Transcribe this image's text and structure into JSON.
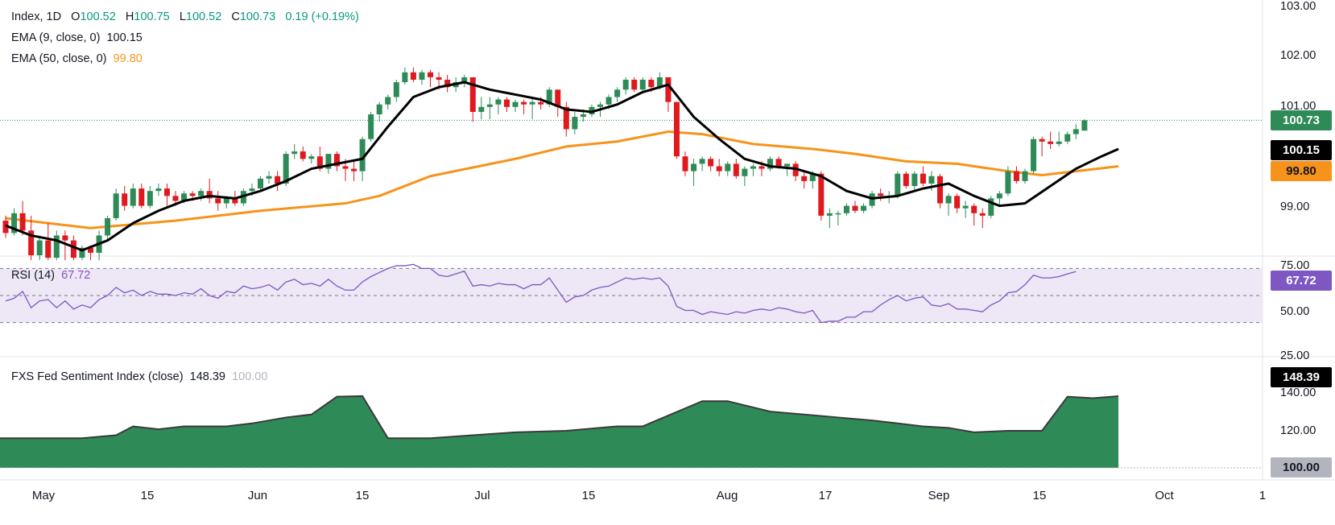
{
  "header": {
    "line1": {
      "symbol": "Index, 1D",
      "o_label": "O",
      "o": "100.52",
      "h_label": "H",
      "h": "100.75",
      "l_label": "L",
      "l": "100.52",
      "c_label": "C",
      "c": "100.73",
      "change": "0.19",
      "change_pct": "(+0.19%)"
    },
    "ema9": {
      "label": "EMA (9, close, 0)",
      "value": "100.15"
    },
    "ema50": {
      "label": "EMA (50, close, 0)",
      "value": "99.80"
    }
  },
  "rsi_pane": {
    "label": "RSI (14)",
    "value": "67.72"
  },
  "fed_pane": {
    "label": "FXS Fed Sentiment Index (close)",
    "value": "148.39",
    "baseline": "100.00"
  },
  "price_axis": {
    "ticks": [
      "103.00",
      "102.00",
      "101.00",
      "99.00"
    ]
  },
  "rsi_axis": {
    "ticks": [
      "75.00",
      "50.00",
      "25.00"
    ]
  },
  "fed_axis": {
    "ticks": [
      "140.00",
      "120.00",
      "100.00"
    ]
  },
  "x_axis": {
    "ticks": [
      "May",
      "15",
      "Jun",
      "15",
      "Jul",
      "15",
      "Aug",
      "17",
      "Sep",
      "15",
      "Oct",
      "1"
    ]
  },
  "price_labels": {
    "last": "100.73",
    "ema9": "100.15",
    "ema50": "99.80"
  },
  "rsi_labels": {
    "last": "67.72"
  },
  "fed_labels": {
    "last": "148.39",
    "baseline": "100.00"
  },
  "colors": {
    "up": "#26a69a",
    "up_fill": "#2e8b57",
    "down": "#e0191e",
    "ema9": "#000000",
    "ema50": "#f7931a",
    "rsi": "#7e57c2",
    "rsi_band": "#ede7f6",
    "fed_fill": "#2e8b57",
    "fed_line": "#3a3a3a"
  },
  "chart_data": [
    {
      "type": "candlestick",
      "title": "Index, 1D",
      "ylim": [
        97.9,
        103.0
      ],
      "candles_ohlc": [
        [
          98.7,
          98.8,
          98.35,
          98.45
        ],
        [
          98.45,
          98.95,
          98.4,
          98.85
        ],
        [
          98.85,
          99.1,
          98.4,
          98.5
        ],
        [
          98.5,
          98.8,
          97.9,
          98.0
        ],
        [
          98.0,
          98.4,
          97.9,
          98.3
        ],
        [
          98.3,
          98.65,
          97.9,
          97.95
        ],
        [
          97.95,
          98.5,
          97.9,
          98.4
        ],
        [
          98.4,
          98.5,
          97.9,
          98.3
        ],
        [
          98.3,
          98.4,
          97.9,
          97.95
        ],
        [
          97.95,
          98.2,
          97.9,
          98.15
        ],
        [
          98.15,
          98.2,
          97.9,
          98.05
        ],
        [
          98.05,
          98.5,
          97.9,
          98.4
        ],
        [
          98.4,
          98.8,
          98.3,
          98.75
        ],
        [
          98.75,
          99.35,
          98.7,
          99.25
        ],
        [
          99.25,
          99.4,
          98.9,
          99.0
        ],
        [
          99.0,
          99.45,
          98.95,
          99.35
        ],
        [
          99.35,
          99.45,
          98.95,
          99.0
        ],
        [
          99.0,
          99.4,
          98.95,
          99.3
        ],
        [
          99.3,
          99.45,
          99.2,
          99.35
        ],
        [
          99.35,
          99.45,
          99.0,
          99.2
        ],
        [
          99.2,
          99.3,
          99.0,
          99.1
        ],
        [
          99.1,
          99.3,
          99.05,
          99.25
        ],
        [
          99.25,
          99.3,
          99.1,
          99.2
        ],
        [
          99.2,
          99.35,
          99.1,
          99.3
        ],
        [
          99.3,
          99.55,
          99.05,
          99.15
        ],
        [
          99.15,
          99.3,
          98.9,
          99.05
        ],
        [
          99.05,
          99.2,
          98.95,
          99.15
        ],
        [
          99.15,
          99.3,
          99.0,
          99.05
        ],
        [
          99.05,
          99.35,
          99.0,
          99.3
        ],
        [
          99.3,
          99.45,
          99.2,
          99.35
        ],
        [
          99.35,
          99.6,
          99.3,
          99.55
        ],
        [
          99.55,
          99.7,
          99.45,
          99.6
        ],
        [
          99.6,
          99.7,
          99.3,
          99.45
        ],
        [
          99.45,
          100.1,
          99.4,
          100.05
        ],
        [
          100.05,
          100.25,
          99.95,
          100.1
        ],
        [
          100.1,
          100.2,
          99.9,
          99.95
        ],
        [
          99.95,
          100.05,
          99.85,
          100.0
        ],
        [
          100.0,
          100.2,
          99.7,
          99.75
        ],
        [
          99.75,
          100.05,
          99.65,
          100.05
        ],
        [
          100.05,
          100.1,
          99.7,
          99.8
        ],
        [
          99.8,
          99.95,
          99.5,
          99.75
        ],
        [
          99.75,
          99.9,
          99.5,
          99.7
        ],
        [
          99.7,
          100.4,
          99.5,
          100.35
        ],
        [
          100.35,
          100.9,
          100.3,
          100.85
        ],
        [
          100.85,
          101.1,
          100.7,
          101.05
        ],
        [
          101.05,
          101.25,
          100.95,
          101.2
        ],
        [
          101.2,
          101.55,
          101.1,
          101.5
        ],
        [
          101.5,
          101.8,
          101.45,
          101.7
        ],
        [
          101.7,
          101.8,
          101.5,
          101.55
        ],
        [
          101.55,
          101.75,
          101.45,
          101.7
        ],
        [
          101.7,
          101.75,
          101.4,
          101.6
        ],
        [
          101.6,
          101.7,
          101.35,
          101.55
        ],
        [
          101.55,
          101.65,
          101.3,
          101.4
        ],
        [
          101.4,
          101.6,
          101.3,
          101.5
        ],
        [
          101.5,
          101.65,
          101.4,
          101.6
        ],
        [
          101.6,
          101.6,
          100.7,
          100.9
        ],
        [
          100.9,
          101.2,
          100.75,
          101.0
        ],
        [
          101.0,
          101.2,
          100.75,
          101.05
        ],
        [
          101.05,
          101.2,
          100.85,
          101.15
        ],
        [
          101.15,
          101.2,
          100.9,
          101.0
        ],
        [
          101.0,
          101.15,
          100.9,
          101.1
        ],
        [
          101.1,
          101.15,
          100.85,
          101.05
        ],
        [
          101.05,
          101.2,
          100.75,
          101.1
        ],
        [
          101.1,
          101.2,
          100.95,
          101.05
        ],
        [
          101.05,
          101.4,
          101.0,
          101.35
        ],
        [
          101.35,
          101.35,
          100.8,
          101.0
        ],
        [
          101.0,
          101.1,
          100.4,
          100.55
        ],
        [
          100.55,
          100.9,
          100.45,
          100.8
        ],
        [
          100.8,
          100.95,
          100.7,
          100.85
        ],
        [
          100.85,
          101.05,
          100.8,
          101.0
        ],
        [
          101.0,
          101.1,
          100.8,
          101.05
        ],
        [
          101.05,
          101.25,
          100.95,
          101.2
        ],
        [
          101.2,
          101.4,
          101.1,
          101.35
        ],
        [
          101.35,
          101.6,
          101.25,
          101.55
        ],
        [
          101.55,
          101.6,
          101.3,
          101.35
        ],
        [
          101.35,
          101.6,
          101.3,
          101.55
        ],
        [
          101.55,
          101.6,
          101.3,
          101.4
        ],
        [
          101.4,
          101.7,
          101.35,
          101.6
        ],
        [
          101.6,
          101.6,
          100.9,
          101.1
        ],
        [
          101.1,
          101.1,
          99.95,
          100.0
        ],
        [
          100.0,
          100.1,
          99.6,
          99.7
        ],
        [
          99.7,
          99.95,
          99.4,
          99.85
        ],
        [
          99.85,
          100.0,
          99.7,
          99.95
        ],
        [
          99.95,
          100.0,
          99.7,
          99.8
        ],
        [
          99.8,
          99.95,
          99.6,
          99.7
        ],
        [
          99.7,
          99.9,
          99.6,
          99.85
        ],
        [
          99.85,
          99.95,
          99.55,
          99.6
        ],
        [
          99.6,
          99.8,
          99.4,
          99.75
        ],
        [
          99.75,
          99.85,
          99.6,
          99.8
        ],
        [
          99.8,
          99.9,
          99.6,
          99.75
        ],
        [
          99.75,
          100.0,
          99.7,
          99.95
        ],
        [
          99.95,
          100.0,
          99.75,
          99.8
        ],
        [
          99.8,
          99.85,
          99.6,
          99.85
        ],
        [
          99.85,
          99.9,
          99.5,
          99.6
        ],
        [
          99.6,
          99.7,
          99.35,
          99.5
        ],
        [
          99.5,
          99.7,
          99.35,
          99.65
        ],
        [
          99.65,
          99.7,
          98.7,
          98.8
        ],
        [
          98.8,
          98.95,
          98.55,
          98.85
        ],
        [
          98.85,
          98.9,
          98.6,
          98.85
        ],
        [
          98.85,
          99.05,
          98.8,
          99.0
        ],
        [
          99.0,
          99.1,
          98.85,
          98.9
        ],
        [
          98.9,
          99.05,
          98.85,
          99.0
        ],
        [
          99.0,
          99.3,
          98.95,
          99.25
        ],
        [
          99.25,
          99.35,
          99.1,
          99.2
        ],
        [
          99.2,
          99.3,
          99.05,
          99.2
        ],
        [
          99.2,
          99.7,
          99.15,
          99.65
        ],
        [
          99.65,
          99.7,
          99.35,
          99.4
        ],
        [
          99.4,
          99.7,
          99.3,
          99.65
        ],
        [
          99.65,
          99.8,
          99.4,
          99.45
        ],
        [
          99.45,
          99.7,
          99.3,
          99.6
        ],
        [
          99.6,
          99.65,
          98.95,
          99.05
        ],
        [
          99.05,
          99.25,
          98.8,
          99.2
        ],
        [
          99.2,
          99.25,
          98.85,
          98.95
        ],
        [
          98.95,
          99.1,
          98.75,
          99.0
        ],
        [
          99.0,
          99.05,
          98.6,
          98.85
        ],
        [
          98.85,
          98.95,
          98.55,
          98.8
        ],
        [
          98.8,
          99.2,
          98.75,
          99.15
        ],
        [
          99.15,
          99.3,
          99.0,
          99.25
        ],
        [
          99.25,
          99.8,
          99.2,
          99.7
        ],
        [
          99.7,
          99.8,
          99.45,
          99.5
        ],
        [
          99.5,
          99.75,
          99.45,
          99.7
        ],
        [
          99.7,
          100.4,
          99.65,
          100.35
        ],
        [
          100.35,
          100.4,
          100.0,
          100.3
        ],
        [
          100.3,
          100.5,
          100.15,
          100.25
        ],
        [
          100.25,
          100.5,
          100.2,
          100.3
        ],
        [
          100.3,
          100.5,
          100.25,
          100.45
        ],
        [
          100.45,
          100.65,
          100.35,
          100.55
        ],
        [
          100.52,
          100.75,
          100.52,
          100.73
        ]
      ],
      "ema_9": [
        [
          0,
          98.6
        ],
        [
          3,
          98.4
        ],
        [
          6,
          98.3
        ],
        [
          9,
          98.1
        ],
        [
          12,
          98.3
        ],
        [
          15,
          98.65
        ],
        [
          18,
          98.9
        ],
        [
          21,
          99.1
        ],
        [
          24,
          99.2
        ],
        [
          27,
          99.15
        ],
        [
          30,
          99.3
        ],
        [
          33,
          99.5
        ],
        [
          36,
          99.75
        ],
        [
          39,
          99.85
        ],
        [
          42,
          99.95
        ],
        [
          45,
          100.6
        ],
        [
          48,
          101.2
        ],
        [
          51,
          101.4
        ],
        [
          54,
          101.5
        ],
        [
          57,
          101.35
        ],
        [
          60,
          101.25
        ],
        [
          63,
          101.15
        ],
        [
          66,
          100.95
        ],
        [
          69,
          100.9
        ],
        [
          72,
          101.05
        ],
        [
          75,
          101.3
        ],
        [
          78,
          101.45
        ],
        [
          81,
          100.8
        ],
        [
          84,
          100.35
        ],
        [
          87,
          99.95
        ],
        [
          90,
          99.8
        ],
        [
          93,
          99.75
        ],
        [
          96,
          99.6
        ],
        [
          99,
          99.3
        ],
        [
          102,
          99.15
        ],
        [
          105,
          99.2
        ],
        [
          108,
          99.35
        ],
        [
          111,
          99.45
        ],
        [
          114,
          99.2
        ],
        [
          117,
          99.0
        ],
        [
          120,
          99.05
        ],
        [
          123,
          99.4
        ],
        [
          126,
          99.75
        ],
        [
          129,
          100.0
        ],
        [
          131,
          100.15
        ]
      ],
      "ema_50": [
        [
          0,
          98.75
        ],
        [
          10,
          98.55
        ],
        [
          20,
          98.7
        ],
        [
          30,
          98.9
        ],
        [
          40,
          99.05
        ],
        [
          44,
          99.2
        ],
        [
          50,
          99.6
        ],
        [
          60,
          99.95
        ],
        [
          66,
          100.2
        ],
        [
          72,
          100.3
        ],
        [
          78,
          100.5
        ],
        [
          82,
          100.45
        ],
        [
          88,
          100.25
        ],
        [
          95,
          100.15
        ],
        [
          100,
          100.05
        ],
        [
          106,
          99.9
        ],
        [
          112,
          99.85
        ],
        [
          118,
          99.7
        ],
        [
          122,
          99.62
        ],
        [
          126,
          99.7
        ],
        [
          131,
          99.8
        ]
      ]
    },
    {
      "type": "line",
      "title": "RSI (14)",
      "ylim": [
        20,
        80
      ],
      "ylabel": "",
      "values": [
        46,
        48,
        53,
        41,
        46,
        47,
        41,
        46,
        40,
        43,
        41,
        47,
        50,
        56,
        52,
        54,
        50,
        53,
        51,
        51,
        50,
        52,
        51,
        55,
        50,
        48,
        53,
        52,
        57,
        55,
        56,
        58,
        54,
        60,
        62,
        58,
        59,
        57,
        62,
        57,
        54,
        54,
        60,
        64,
        67,
        70,
        72,
        72,
        73,
        70,
        70,
        65,
        64,
        66,
        68,
        57,
        58,
        57,
        59,
        58,
        58,
        55,
        58,
        58,
        63,
        54,
        45,
        49,
        50,
        54,
        56,
        57,
        60,
        63,
        62,
        63,
        62,
        63,
        57,
        42,
        39,
        39,
        36,
        38,
        37,
        36,
        38,
        37,
        39,
        40,
        39,
        41,
        40,
        38,
        37,
        39,
        30,
        31,
        31,
        34,
        34,
        38,
        38,
        43,
        47,
        50,
        46,
        48,
        49,
        43,
        42,
        44,
        40,
        40,
        39,
        38,
        43,
        46,
        52,
        53,
        58,
        65,
        63,
        63,
        64,
        66,
        67.72
      ],
      "reference_lines": [
        70,
        50,
        30
      ]
    },
    {
      "type": "area",
      "title": "FXS Fed Sentiment Index (close)",
      "ylim": [
        100,
        150
      ],
      "x_index": [
        0,
        9,
        13,
        15,
        18,
        21,
        26,
        29,
        33,
        36,
        39,
        42,
        45,
        50,
        55,
        60,
        66,
        72,
        75,
        82,
        85,
        90,
        94,
        98,
        102,
        105,
        108,
        111,
        114,
        118,
        122,
        125,
        128,
        131
      ],
      "values": [
        120,
        120,
        122,
        128,
        126,
        128,
        128,
        130,
        134,
        136,
        148,
        148.4,
        120,
        120,
        122,
        124,
        125,
        128,
        128,
        145,
        145,
        138,
        136,
        134,
        132,
        130,
        128,
        127,
        124,
        125,
        125,
        148,
        147,
        148.39
      ]
    }
  ]
}
